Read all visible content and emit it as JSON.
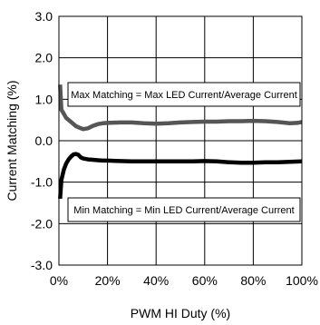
{
  "chart_data": {
    "type": "line",
    "xlabel": "PWM HI Duty (%)",
    "ylabel": "Current Matching (%)",
    "xlim": [
      0,
      100
    ],
    "ylim": [
      -3.0,
      3.0
    ],
    "x_ticks": [
      0,
      20,
      40,
      60,
      80,
      100
    ],
    "x_tick_labels": [
      "0%",
      "20%",
      "40%",
      "60%",
      "80%",
      "100%"
    ],
    "y_ticks": [
      3.0,
      2.0,
      1.0,
      0.0,
      -1.0,
      -2.0,
      -3.0
    ],
    "y_tick_labels": [
      "3.0",
      "2.0",
      "1.0",
      "0.0",
      "-1.0",
      "-2.0",
      "-3.0"
    ],
    "grid": true,
    "annotations": [
      {
        "text": "Max Matching = Max LED Current/Average Current",
        "series": "max"
      },
      {
        "text": "Min Matching = Min LED Current/Average Current",
        "series": "min"
      }
    ],
    "series": [
      {
        "id": "max",
        "color": "#555555",
        "x": [
          0.5,
          1,
          2,
          3,
          5,
          7,
          9,
          10,
          12,
          14,
          16,
          18,
          20,
          25,
          30,
          35,
          40,
          45,
          50,
          55,
          60,
          65,
          70,
          75,
          80,
          85,
          90,
          95,
          98,
          100
        ],
        "y": [
          1.35,
          0.75,
          0.65,
          0.55,
          0.45,
          0.35,
          0.3,
          0.28,
          0.3,
          0.36,
          0.4,
          0.42,
          0.43,
          0.44,
          0.44,
          0.42,
          0.41,
          0.42,
          0.44,
          0.45,
          0.46,
          0.46,
          0.47,
          0.47,
          0.48,
          0.47,
          0.45,
          0.42,
          0.43,
          0.45
        ]
      },
      {
        "id": "min",
        "color": "#000000",
        "x": [
          0.5,
          1,
          2,
          3,
          4,
          5,
          6,
          7,
          8,
          9,
          10,
          12,
          14,
          16,
          18,
          20,
          25,
          30,
          35,
          40,
          45,
          50,
          55,
          60,
          65,
          70,
          75,
          80,
          85,
          90,
          95,
          100
        ],
        "y": [
          -1.4,
          -0.95,
          -0.7,
          -0.55,
          -0.45,
          -0.38,
          -0.33,
          -0.32,
          -0.34,
          -0.4,
          -0.43,
          -0.45,
          -0.46,
          -0.47,
          -0.48,
          -0.48,
          -0.49,
          -0.5,
          -0.5,
          -0.5,
          -0.5,
          -0.5,
          -0.5,
          -0.49,
          -0.5,
          -0.52,
          -0.53,
          -0.53,
          -0.52,
          -0.52,
          -0.51,
          -0.5
        ]
      }
    ]
  }
}
